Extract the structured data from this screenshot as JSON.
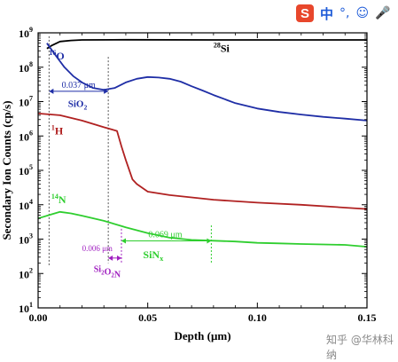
{
  "chart_data": {
    "type": "line",
    "xlabel": "Depth  (μm)",
    "ylabel": "Secondary Ion Counts (cp/s)",
    "xlim": [
      0,
      0.15
    ],
    "ylim_log10": [
      1,
      9
    ],
    "log_y": true,
    "x_ticks": [
      0.0,
      0.05,
      0.1,
      0.15
    ],
    "x_tick_labels": [
      "0.00",
      "0.05",
      "0.10",
      "0.15"
    ],
    "y_tick_exponents": [
      1,
      2,
      3,
      4,
      5,
      6,
      7,
      8,
      9
    ],
    "y_tick_labels": [
      "10",
      "10",
      "10",
      "10",
      "10",
      "10",
      "10",
      "10",
      "10"
    ],
    "y_tick_superscripts": [
      "1",
      "2",
      "3",
      "4",
      "5",
      "6",
      "7",
      "8",
      "9"
    ],
    "series": [
      {
        "label_mass": "28",
        "label_elem": "Si",
        "color": "#000000",
        "x": [
          0.004,
          0.006,
          0.01,
          0.015,
          0.02,
          0.04,
          0.08,
          0.12,
          0.15
        ],
        "y": [
          350000000.0,
          420000000.0,
          560000000.0,
          600000000.0,
          620000000.0,
          630000000.0,
          620000000.0,
          620000000.0,
          620000000.0
        ]
      },
      {
        "label_mass": "16",
        "label_elem": "O",
        "color": "#1f2ea6",
        "x": [
          0.004,
          0.008,
          0.012,
          0.016,
          0.02,
          0.025,
          0.03,
          0.035,
          0.04,
          0.045,
          0.05,
          0.055,
          0.06,
          0.065,
          0.07,
          0.075,
          0.08,
          0.09,
          0.1,
          0.11,
          0.12,
          0.13,
          0.14,
          0.15
        ],
        "y": [
          500000000.0,
          220000000.0,
          100000000.0,
          55000000.0,
          36000000.0,
          25000000.0,
          22000000.0,
          25000000.0,
          36000000.0,
          46000000.0,
          52000000.0,
          50000000.0,
          46000000.0,
          38000000.0,
          28000000.0,
          21000000.0,
          15500000.0,
          9000000.0,
          6300000.0,
          5000000.0,
          4200000.0,
          3600000.0,
          3200000.0,
          2800000.0
        ]
      },
      {
        "label_mass": "1",
        "label_elem": "H",
        "color": "#b02121",
        "x": [
          0.0,
          0.01,
          0.02,
          0.03,
          0.036,
          0.038,
          0.04,
          0.043,
          0.045,
          0.05,
          0.06,
          0.08,
          0.1,
          0.12,
          0.15
        ],
        "y": [
          4500000.0,
          4000000.0,
          2800000.0,
          1800000.0,
          1400000.0,
          500000.0,
          200000.0,
          55000.0,
          40000.0,
          24000.0,
          19000.0,
          14000.0,
          11500.0,
          10000.0,
          7500.0
        ]
      },
      {
        "label_mass": "14",
        "label_elem": "N",
        "color": "#2fce2f",
        "x": [
          0.0,
          0.005,
          0.01,
          0.015,
          0.02,
          0.03,
          0.04,
          0.05,
          0.06,
          0.07,
          0.08,
          0.09,
          0.1,
          0.11,
          0.12,
          0.13,
          0.14,
          0.15
        ],
        "y": [
          4000.0,
          5000.0,
          6200.0,
          5600.0,
          4800.0,
          3400.0,
          2200.0,
          1500.0,
          1100.0,
          950,
          900,
          850,
          780,
          750,
          720,
          700,
          680,
          600
        ]
      }
    ],
    "annotations": [
      {
        "text": "0.037 μm",
        "color": "#1f2ea6"
      },
      {
        "text": "SiO",
        "sub": "2",
        "color": "#1f2ea6"
      },
      {
        "text": "0.069 μm",
        "color": "#2fce2f"
      },
      {
        "text": "SiN",
        "sub": "x",
        "color": "#2fce2f"
      },
      {
        "text": "0.006 μm",
        "color": "#a020c0"
      },
      {
        "text": "Si",
        "sub": "2",
        "text2": "O",
        "sub2": "2",
        "text3": "N",
        "color": "#a020c0"
      }
    ]
  },
  "overlay": {
    "ime_logo": "S",
    "ime_mode": "中",
    "ime_punct": "°,",
    "ime_emoji_icon": "smile-icon",
    "ime_mic_icon": "microphone-icon",
    "watermark": "知乎 @华林科纳"
  }
}
